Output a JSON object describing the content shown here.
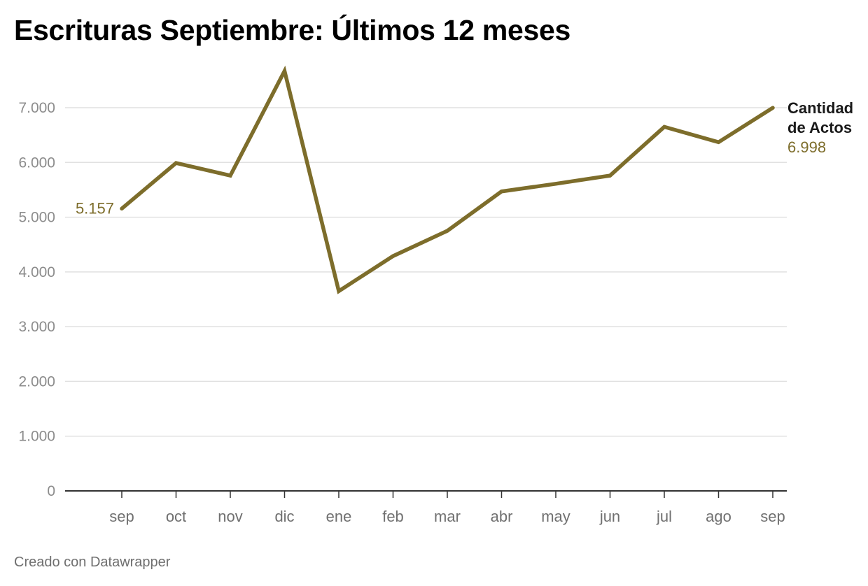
{
  "title": "Escrituras Septiembre: Últimos 12 meses",
  "footer": "Creado con Datawrapper",
  "colors": {
    "line": "#7d6d2b",
    "grid": "#e1e1e1",
    "tick_label": "#8c8c8c",
    "x_label": "#707070",
    "series_label": "#1a1a1a"
  },
  "chart_data": {
    "type": "line",
    "categories": [
      "sep",
      "oct",
      "nov",
      "dic",
      "ene",
      "feb",
      "mar",
      "abr",
      "may",
      "jun",
      "jul",
      "ago",
      "sep"
    ],
    "series": [
      {
        "name": "Cantidad de Actos",
        "values": [
          5157,
          5990,
          5760,
          7670,
          3650,
          4290,
          4750,
          5470,
          5610,
          5760,
          6650,
          6370,
          6998
        ]
      }
    ],
    "ylim": [
      0,
      7000
    ],
    "yticks": [
      0,
      1000,
      2000,
      3000,
      4000,
      5000,
      6000,
      7000
    ],
    "ytick_labels": [
      "0",
      "1.000",
      "2.000",
      "3.000",
      "4.000",
      "5.000",
      "6.000",
      "7.000"
    ],
    "start_value_label": "5.157",
    "end_value_label": "6.998",
    "series_label_lines": [
      "Cantidad",
      "de Actos"
    ],
    "grid": true,
    "legend": "direct label at line end"
  }
}
